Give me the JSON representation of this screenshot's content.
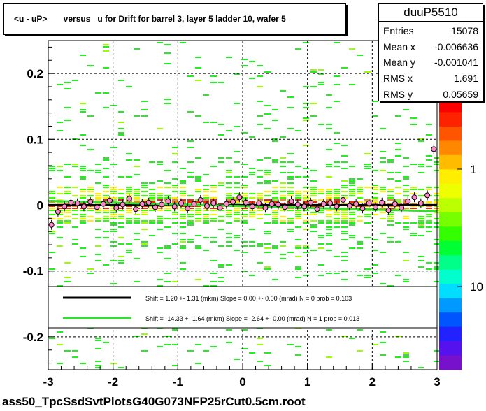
{
  "title": "<u - uP>       versus   u for Drift for barrel 3, layer 5 ladder 10, wafer 5",
  "stats": {
    "name": "duuP5510",
    "rows": [
      {
        "label": "Entries",
        "value": "15078"
      },
      {
        "label": "Mean x",
        "value": "-0.006636"
      },
      {
        "label": "Mean y",
        "value": "-0.001041"
      },
      {
        "label": "RMS x",
        "value": "1.691"
      },
      {
        "label": "RMS y",
        "value": "0.05659"
      }
    ]
  },
  "footer": "ass50_TpcSsdSvtPlotsG40G073NFP25rCut0.5cm.root",
  "legend": [
    {
      "text": "Shift =    1.20 +- 1.31 (mkm) Slope =    0.00 +- 0.00 (mrad)  N = 0 prob = 0.103",
      "color": "#000000"
    },
    {
      "text": "Shift =   -14.33 +- 1.64 (mkm) Slope =    -2.64 +- 0.00 (mrad)  N = 1 prob = 0.013",
      "color": "#33dd33"
    }
  ],
  "chart_data": {
    "type": "heatmap",
    "xlim": [
      -3,
      3
    ],
    "ylim": [
      -0.25,
      0.25
    ],
    "x_ticks": [
      -3,
      -2,
      -1,
      0,
      1,
      2,
      3
    ],
    "x_tick_labels": [
      "-3",
      "-2",
      "-1",
      "0",
      "1",
      "2",
      "3"
    ],
    "y_ticks": [
      -0.2,
      -0.1,
      0,
      0.1,
      0.2
    ],
    "y_tick_labels": [
      "-0.2",
      "-0.1",
      "0",
      "0.1",
      "0.2"
    ],
    "grid": true,
    "palette": "root-rainbow",
    "colorbar_labels": [
      "1",
      "10"
    ],
    "colorbar_partial_label": "0",
    "fits": [
      {
        "shift_mkm": 1.2,
        "slope_mrad": 0.0,
        "color": "#000000"
      },
      {
        "shift_mkm": -14.33,
        "slope_mrad": -2.64,
        "color": "#33dd33"
      }
    ],
    "profile_points": [
      [
        -2.95,
        -0.03
      ],
      [
        -2.85,
        -0.01
      ],
      [
        -2.75,
        -0.002
      ],
      [
        -2.65,
        0.004
      ],
      [
        -2.55,
        0.003
      ],
      [
        -2.45,
        -0.002
      ],
      [
        -2.35,
        0.005
      ],
      [
        -2.25,
        -0.003
      ],
      [
        -2.15,
        0.002
      ],
      [
        -2.05,
        0.007
      ],
      [
        -1.95,
        -0.004
      ],
      [
        -1.85,
        0.001
      ],
      [
        -1.75,
        0.01
      ],
      [
        -1.65,
        -0.006
      ],
      [
        -1.55,
        0.002
      ],
      [
        -1.45,
        0.004
      ],
      [
        -1.35,
        -0.003
      ],
      [
        -1.25,
        0.001
      ],
      [
        -1.15,
        0.006
      ],
      [
        -1.05,
        -0.002
      ],
      [
        -0.95,
        0.003
      ],
      [
        -0.85,
        -0.005
      ],
      [
        -0.75,
        0.002
      ],
      [
        -0.65,
        0.008
      ],
      [
        -0.55,
        -0.001
      ],
      [
        -0.45,
        0.003
      ],
      [
        -0.35,
        -0.004
      ],
      [
        -0.25,
        0.002
      ],
      [
        -0.15,
        0.005
      ],
      [
        -0.05,
        0.012
      ],
      [
        0.05,
        0.004
      ],
      [
        0.15,
        -0.002
      ],
      [
        0.25,
        0.003
      ],
      [
        0.35,
        -0.004
      ],
      [
        0.45,
        0.002
      ],
      [
        0.55,
        0.001
      ],
      [
        0.65,
        -0.003
      ],
      [
        0.75,
        0.006
      ],
      [
        0.85,
        0.001
      ],
      [
        0.95,
        -0.002
      ],
      [
        1.05,
        0.004
      ],
      [
        1.15,
        -0.006
      ],
      [
        1.25,
        0.002
      ],
      [
        1.35,
        0.003
      ],
      [
        1.45,
        -0.002
      ],
      [
        1.55,
        0.008
      ],
      [
        1.65,
        -0.001
      ],
      [
        1.75,
        0.002
      ],
      [
        1.85,
        -0.005
      ],
      [
        1.95,
        0.003
      ],
      [
        2.05,
        -0.003
      ],
      [
        2.15,
        0.004
      ],
      [
        2.25,
        -0.008
      ],
      [
        2.35,
        0.002
      ],
      [
        2.45,
        -0.004
      ],
      [
        2.55,
        0.006
      ],
      [
        2.65,
        0.012
      ],
      [
        2.75,
        0.003
      ],
      [
        2.85,
        0.015
      ],
      [
        2.95,
        0.085
      ]
    ]
  }
}
